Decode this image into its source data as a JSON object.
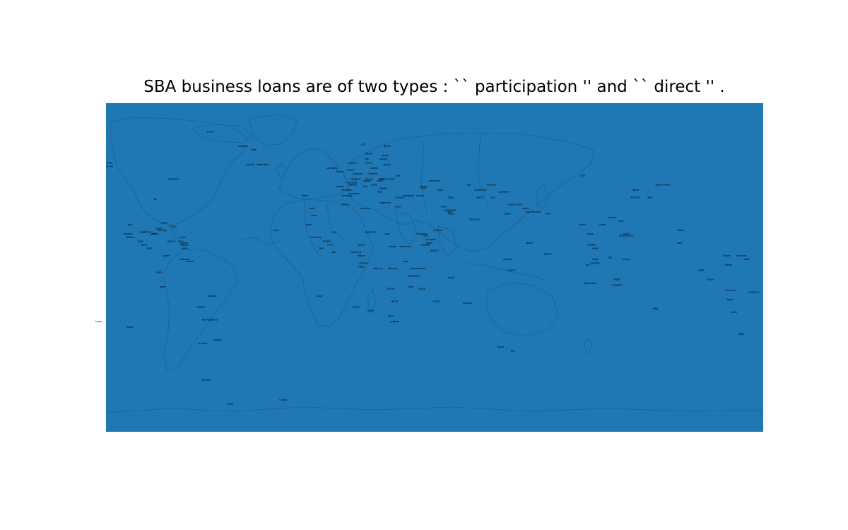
{
  "title": "SBA business loans are of two types : `` participation '' and `` direct '' .",
  "colors": {
    "ocean": "#1f77b4",
    "land_border": "#16578a"
  },
  "labels": [
    {
      "text": "street",
      "lon": -123,
      "lat": 74
    },
    {
      "text": "meeting",
      "lon": -105,
      "lat": 66
    },
    {
      "text": "total",
      "lon": -99,
      "lat": 64
    },
    {
      "text": "outlook",
      "lon": -101,
      "lat": 56
    },
    {
      "text": "deal",
      "lon": -96,
      "lat": 56
    },
    {
      "text": "surface",
      "lon": -93,
      "lat": 56
    },
    {
      "text": "flash",
      "lon": -178,
      "lat": 57
    },
    {
      "text": "group",
      "lon": -178,
      "lat": 55
    },
    {
      "text": "company",
      "lon": -143,
      "lat": 48
    },
    {
      "text": "air",
      "lon": -153,
      "lat": 37
    },
    {
      "text": "sea",
      "lon": -167,
      "lat": 23
    },
    {
      "text": "party",
      "lon": -148,
      "lat": 24
    },
    {
      "text": "world",
      "lon": -151,
      "lat": 21
    },
    {
      "text": "basis",
      "lon": -143,
      "lat": 22
    },
    {
      "text": "median",
      "lon": -168,
      "lat": 18
    },
    {
      "text": "LLC",
      "lon": -168,
      "lat": 16
    },
    {
      "text": "team",
      "lon": -166,
      "lat": 16
    },
    {
      "text": "Bowl",
      "lon": -160,
      "lat": 19
    },
    {
      "text": "street",
      "lon": -157,
      "lat": 19
    },
    {
      "text": "Energy",
      "lon": -149,
      "lat": 20
    },
    {
      "text": "year",
      "lon": -154,
      "lat": 18
    },
    {
      "text": "China",
      "lon": -153,
      "lat": 18
    },
    {
      "text": "seat",
      "lon": -161,
      "lat": 14
    },
    {
      "text": "agency",
      "lon": -144,
      "lat": 14
    },
    {
      "text": "price",
      "lon": -138,
      "lat": 16
    },
    {
      "text": "plan",
      "lon": -139,
      "lat": 14
    },
    {
      "text": "agent",
      "lon": -137,
      "lat": 13
    },
    {
      "text": "people",
      "lon": -137,
      "lat": 12
    },
    {
      "text": "news",
      "lon": -137,
      "lat": 10
    },
    {
      "text": "basis",
      "lon": -159,
      "lat": 12
    },
    {
      "text": "Kuhn",
      "lon": -156,
      "lat": 10
    },
    {
      "text": "grade",
      "lon": -147,
      "lat": 6
    },
    {
      "text": "channel",
      "lon": -137,
      "lat": 4
    },
    {
      "text": "world",
      "lon": -134,
      "lat": 3
    },
    {
      "text": "team",
      "lon": -151,
      "lat": -3
    },
    {
      "text": "week",
      "lon": -149,
      "lat": -11
    },
    {
      "text": "median",
      "lon": -122,
      "lat": -16
    },
    {
      "text": "subject",
      "lon": -128,
      "lat": -22
    },
    {
      "text": "Baumgartner",
      "lon": -123,
      "lat": -29
    },
    {
      "text": "team",
      "lon": -184,
      "lat": -30
    },
    {
      "text": "result",
      "lon": -167,
      "lat": -33
    },
    {
      "text": "number",
      "lon": -127,
      "lat": -42
    },
    {
      "text": "season",
      "lon": -119,
      "lat": -40
    },
    {
      "text": "process",
      "lon": -125,
      "lat": -62
    },
    {
      "text": "night",
      "lon": -112,
      "lat": -75
    },
    {
      "text": "school",
      "lon": -83,
      "lat": -73
    },
    {
      "text": "West",
      "lon": -71,
      "lat": 39
    },
    {
      "text": "history",
      "lon": -49,
      "lat": 34
    },
    {
      "text": "process",
      "lon": -38,
      "lat": 32
    },
    {
      "text": "word",
      "lon": -87,
      "lat": 20
    },
    {
      "text": "area",
      "lon": -67,
      "lat": 32
    },
    {
      "text": "union",
      "lon": -66,
      "lat": 28
    },
    {
      "text": "state",
      "lon": -69,
      "lat": 23
    },
    {
      "text": "vice",
      "lon": -55,
      "lat": 19
    },
    {
      "text": "operation",
      "lon": -35,
      "lat": 19
    },
    {
      "text": "Germany",
      "lon": -65,
      "lat": 16
    },
    {
      "text": "people",
      "lon": -59,
      "lat": 14
    },
    {
      "text": "news",
      "lon": -57,
      "lat": 12
    },
    {
      "text": "wall",
      "lon": -62,
      "lat": 10
    },
    {
      "text": "sale",
      "lon": -55,
      "lat": 8
    },
    {
      "text": "planning",
      "lon": -43,
      "lat": 8
    },
    {
      "text": "figure",
      "lon": -40,
      "lat": 6
    },
    {
      "text": "loss",
      "lon": -26,
      "lat": 18
    },
    {
      "text": "state",
      "lon": -5,
      "lat": 17
    },
    {
      "text": "group",
      "lon": -40,
      "lat": 12
    },
    {
      "text": "others",
      "lon": -23,
      "lat": 11
    },
    {
      "text": "operation",
      "lon": -16,
      "lat": 11
    },
    {
      "text": "systems",
      "lon": -5,
      "lat": 12
    },
    {
      "text": "program",
      "lon": -7,
      "lat": 18
    },
    {
      "text": "practice",
      "lon": 2,
      "lat": 20
    },
    {
      "text": "situation",
      "lon": -2,
      "lat": 15
    },
    {
      "text": "flight",
      "lon": -3,
      "lat": 13
    },
    {
      "text": "quarter",
      "lon": 0,
      "lat": 9
    },
    {
      "text": "control",
      "lon": -39,
      "lat": 2
    },
    {
      "text": "flight",
      "lon": -40,
      "lat": 0
    },
    {
      "text": "channel",
      "lon": -31,
      "lat": -1
    },
    {
      "text": "rate",
      "lon": -16,
      "lat": 3
    },
    {
      "text": "development",
      "lon": -9,
      "lat": -1
    },
    {
      "text": "Moscow",
      "lon": -23,
      "lat": -1
    },
    {
      "text": "Bedrosian",
      "lon": -11,
      "lat": -5
    },
    {
      "text": "school",
      "lon": -24,
      "lat": -12
    },
    {
      "text": "river",
      "lon": -13,
      "lat": -11
    },
    {
      "text": "space",
      "lon": -7,
      "lat": -12
    },
    {
      "text": "share",
      "lon": 9,
      "lat": -6
    },
    {
      "text": "figure",
      "lon": -43,
      "lat": -22
    },
    {
      "text": "horse",
      "lon": -35,
      "lat": -24
    },
    {
      "text": "world",
      "lon": -22,
      "lat": -19
    },
    {
      "text": "bank",
      "lon": -24,
      "lat": -27
    },
    {
      "text": "center",
      "lon": 1,
      "lat": -19
    },
    {
      "text": "number",
      "lon": 18,
      "lat": -20
    },
    {
      "text": "bed",
      "lon": -21,
      "lat": -30
    },
    {
      "text": "year",
      "lon": -23,
      "lat": -30
    },
    {
      "text": "plan",
      "lon": -63,
      "lat": -16
    },
    {
      "text": "city",
      "lon": -39,
      "lat": 67
    },
    {
      "text": "Briefs",
      "lon": -26,
      "lat": 66
    },
    {
      "text": "fiftieth",
      "lon": -36,
      "lat": 62
    },
    {
      "text": "group",
      "lon": -27,
      "lat": 61
    },
    {
      "text": "win",
      "lon": -37,
      "lat": 59
    },
    {
      "text": "source",
      "lon": -28,
      "lat": 59
    },
    {
      "text": "subject",
      "lon": -45,
      "lat": 57
    },
    {
      "text": "Grunt",
      "lon": -36,
      "lat": 57
    },
    {
      "text": "family",
      "lon": -26,
      "lat": 56
    },
    {
      "text": "company",
      "lon": -56,
      "lat": 54
    },
    {
      "text": "share",
      "lon": -46,
      "lat": 53
    },
    {
      "text": "others",
      "lon": -33,
      "lat": 54
    },
    {
      "text": "figure",
      "lon": -52,
      "lat": 52
    },
    {
      "text": "program",
      "lon": -42,
      "lat": 51
    },
    {
      "text": "Gazette",
      "lon": -34,
      "lat": 51
    },
    {
      "text": "bay",
      "lon": -20,
      "lat": 50
    },
    {
      "text": "Vladimir",
      "lon": -43,
      "lat": 48
    },
    {
      "text": "board",
      "lon": -36,
      "lat": 48
    },
    {
      "text": "bank",
      "lon": -29,
      "lat": 48
    },
    {
      "text": "Government",
      "lon": -26,
      "lat": 48
    },
    {
      "text": "people",
      "lon": -37,
      "lat": 47
    },
    {
      "text": "state",
      "lon": -30,
      "lat": 47
    },
    {
      "text": "city",
      "lon": -47,
      "lat": 46
    },
    {
      "text": "shoe",
      "lon": -44,
      "lat": 46
    },
    {
      "text": "issue",
      "lon": -33,
      "lat": 45
    },
    {
      "text": "people",
      "lon": -52,
      "lat": 44
    },
    {
      "text": "market",
      "lon": -45,
      "lat": 45
    },
    {
      "text": "bed",
      "lon": -38,
      "lat": 44
    },
    {
      "text": "Yeager",
      "lon": -28,
      "lat": 43
    },
    {
      "text": "situation",
      "lon": -48,
      "lat": 42
    },
    {
      "text": "deal",
      "lon": -30,
      "lat": 41
    },
    {
      "text": "operation",
      "lon": -44,
      "lat": 40
    },
    {
      "text": "company",
      "lon": -48,
      "lat": 39
    },
    {
      "text": "figure",
      "lon": -13,
      "lat": 39
    },
    {
      "text": "plan",
      "lon": -16,
      "lat": 39
    },
    {
      "text": "record",
      "lon": -8,
      "lat": 39
    },
    {
      "text": "division",
      "lon": -19,
      "lat": 38
    },
    {
      "text": "authority",
      "lon": -27,
      "lat": 35
    },
    {
      "text": "court",
      "lon": -20,
      "lat": 33
    },
    {
      "text": "people",
      "lon": -6,
      "lat": 44
    },
    {
      "text": "loss",
      "lon": -6,
      "lat": 43
    },
    {
      "text": "night",
      "lon": 3,
      "lat": 42
    },
    {
      "text": "physician",
      "lon": 0,
      "lat": 47
    },
    {
      "text": "place",
      "lon": 10,
      "lat": 31
    },
    {
      "text": "state",
      "lon": 9,
      "lat": 38
    },
    {
      "text": "room",
      "lon": 5,
      "lat": 33
    },
    {
      "text": "Moto",
      "lon": 9,
      "lat": 29
    },
    {
      "text": "price",
      "lon": 7,
      "lat": 31
    },
    {
      "text": "role",
      "lon": 8,
      "lat": 30
    },
    {
      "text": "Secretary",
      "lon": 22,
      "lat": 26
    },
    {
      "text": "bar",
      "lon": 19,
      "lat": 45
    },
    {
      "text": "Soviets",
      "lon": 31,
      "lat": 45
    },
    {
      "text": "Mcdonald",
      "lon": 25,
      "lat": 42
    },
    {
      "text": "publisher",
      "lon": 38,
      "lat": 41
    },
    {
      "text": "Burck",
      "lon": 25,
      "lat": 38
    },
    {
      "text": "city",
      "lon": 32,
      "lat": 38
    },
    {
      "text": "Government",
      "lon": 44,
      "lat": 34
    },
    {
      "text": "policy",
      "lon": 50,
      "lat": 32
    },
    {
      "text": "pride",
      "lon": 40,
      "lat": 29
    },
    {
      "text": "Government",
      "lon": 54,
      "lat": 30
    },
    {
      "text": "crew",
      "lon": 62,
      "lat": 29
    },
    {
      "text": "light",
      "lon": 81,
      "lat": 50
    },
    {
      "text": "Government",
      "lon": 125,
      "lat": 45
    },
    {
      "text": "result",
      "lon": 110,
      "lat": 42
    },
    {
      "text": "Kremlin",
      "lon": 110,
      "lat": 38
    },
    {
      "text": "data",
      "lon": 118,
      "lat": 38
    },
    {
      "text": "mark",
      "lon": 81,
      "lat": 23
    },
    {
      "text": "cause",
      "lon": 85,
      "lat": 18
    },
    {
      "text": "Department",
      "lon": 105,
      "lat": 17
    },
    {
      "text": "court",
      "lon": 105,
      "lat": 18
    },
    {
      "text": "school",
      "lon": 97,
      "lat": 27
    },
    {
      "text": "cure",
      "lon": 102,
      "lat": 25
    },
    {
      "text": "room",
      "lon": 92,
      "lat": 23
    },
    {
      "text": "Nixon",
      "lon": 135,
      "lat": 20
    },
    {
      "text": "wall",
      "lon": 134,
      "lat": 13
    },
    {
      "text": "week",
      "lon": 88,
      "lat": 10
    },
    {
      "text": "people",
      "lon": 86,
      "lat": 12
    },
    {
      "text": "word",
      "lon": 88,
      "lat": 4
    },
    {
      "text": "position",
      "lon": 88,
      "lat": 2
    },
    {
      "text": "LSU",
      "lon": 96,
      "lat": 5
    },
    {
      "text": "girl",
      "lon": 84,
      "lat": 1
    },
    {
      "text": "house",
      "lon": 105,
      "lat": 4
    },
    {
      "text": "flight",
      "lon": 100,
      "lat": -7
    },
    {
      "text": "program",
      "lon": 100,
      "lat": -10
    },
    {
      "text": "statement",
      "lon": 85,
      "lat": -9
    },
    {
      "text": "night",
      "lon": 146,
      "lat": -2
    },
    {
      "text": "mean",
      "lon": 151,
      "lat": -7
    },
    {
      "text": "Soviet",
      "lon": 160,
      "lat": 6
    },
    {
      "text": "moment",
      "lon": 168,
      "lat": 6
    },
    {
      "text": "labor",
      "lon": 171,
      "lat": 4
    },
    {
      "text": "House",
      "lon": 161,
      "lat": 1
    },
    {
      "text": "structure",
      "lon": 162,
      "lat": -13
    },
    {
      "text": "audience",
      "lon": 175,
      "lat": -14
    },
    {
      "text": "figure",
      "lon": 162,
      "lat": -18
    },
    {
      "text": "truth",
      "lon": 164,
      "lat": -25
    },
    {
      "text": "Blow",
      "lon": 168,
      "lat": -37
    },
    {
      "text": "NBA",
      "lon": 121,
      "lat": -23
    },
    {
      "text": "Soviet",
      "lon": 62,
      "lat": 7
    },
    {
      "text": "water",
      "lon": 52,
      "lat": 13
    },
    {
      "text": "subject",
      "lon": 42,
      "lat": -2
    },
    {
      "text": "ground",
      "lon": 40,
      "lat": 4
    },
    {
      "text": "house",
      "lon": 36,
      "lat": -44
    },
    {
      "text": "bed",
      "lon": 43,
      "lat": -46
    }
  ]
}
